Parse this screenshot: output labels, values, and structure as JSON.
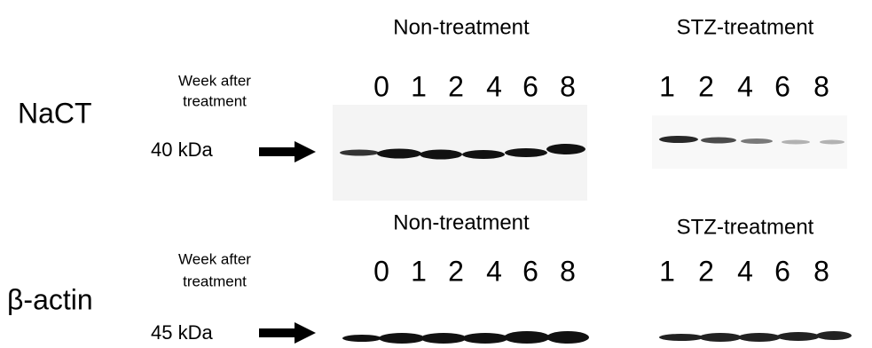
{
  "panels": [
    {
      "label": "NaCT",
      "marker": "40 kDa",
      "week_label": [
        "Week after",
        "treatment"
      ],
      "groups": [
        {
          "title": "Non-treatment",
          "lanes": [
            "0",
            "1",
            "2",
            "4",
            "6",
            "8"
          ]
        },
        {
          "title": "STZ-treatment",
          "lanes": [
            "1",
            "2",
            "4",
            "6",
            "8"
          ]
        }
      ]
    },
    {
      "label": "β-actin",
      "marker": "45 kDa",
      "week_label": [
        "Week after",
        "treatment"
      ],
      "groups": [
        {
          "title": "Non-treatment",
          "lanes": [
            "0",
            "1",
            "2",
            "4",
            "6",
            "8"
          ]
        },
        {
          "title": "STZ-treatment",
          "lanes": [
            "1",
            "2",
            "4",
            "6",
            "8"
          ]
        }
      ]
    }
  ]
}
